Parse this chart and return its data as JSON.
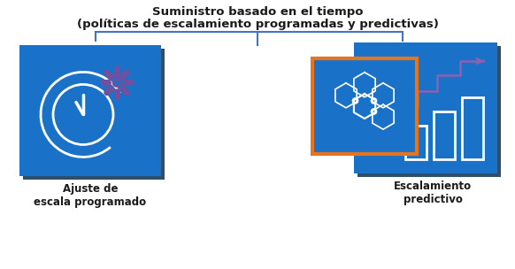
{
  "title_line1": "Suministro basado en el tiempo",
  "title_line2": "(políticas de escalamiento programadas y predictivas)",
  "label_left": "Ajuste de\nescala programado",
  "label_right": "Escalamiento\npredictivo",
  "bg_color": "#ffffff",
  "box_blue_main": "#1a72c8",
  "box_blue_back": "#1a72c8",
  "box_shadow_color": "#3d5a7a",
  "box_orange": "#e8731a",
  "bracket_color": "#4472c4",
  "title_fontsize": 9.5,
  "label_fontsize": 8.5,
  "icon_white": "#ffffff",
  "icon_purple": "#9060b0",
  "gear_purple": "#7050a0"
}
